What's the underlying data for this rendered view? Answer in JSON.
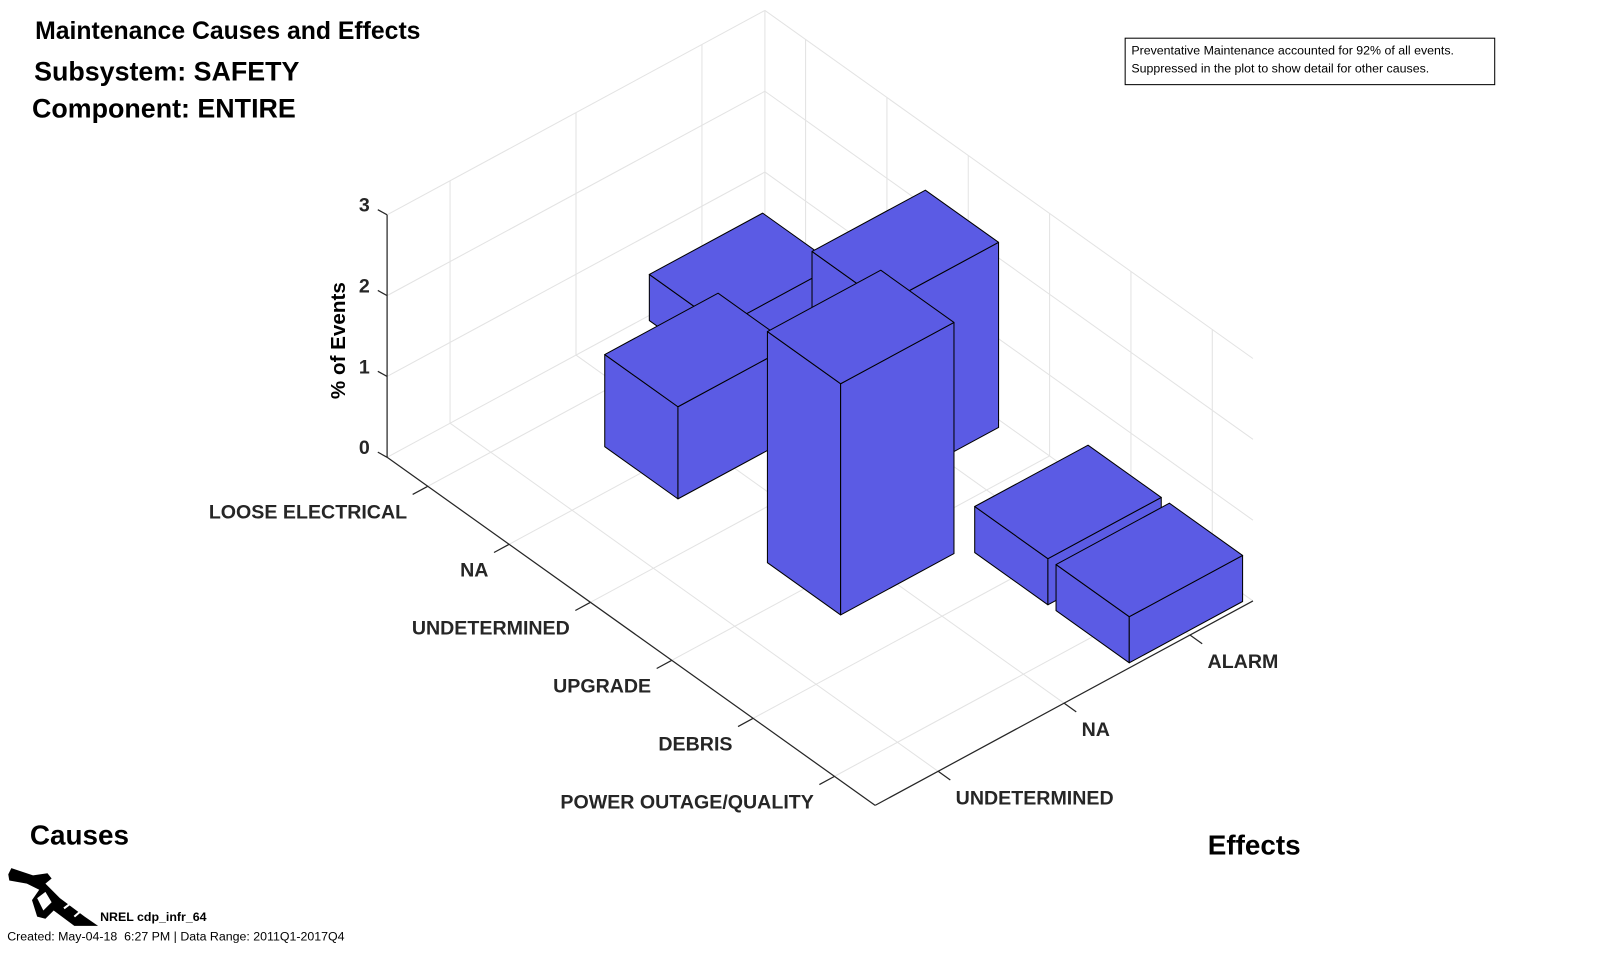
{
  "title": {
    "line1": "Maintenance Causes and Effects",
    "line2": "Subsystem: SAFETY",
    "line3": "Component: ENTIRE"
  },
  "annotation": {
    "line1": "Preventative Maintenance accounted for 92% of all events.",
    "line2": "Suppressed in the plot to show detail for other causes."
  },
  "footer": {
    "logo_label": "NREL cdp_infr_64",
    "created": "Created: May-04-18  6:27 PM | Data Range: 2011Q1-2017Q4",
    "logo_icon": "fuel-nozzle-icon"
  },
  "chart_data": {
    "type": "bar3d",
    "title": "Maintenance Causes and Effects",
    "xlabel": "Causes",
    "ylabel": "Effects",
    "zlabel": "% of Events",
    "causes": [
      "LOOSE ELECTRICAL",
      "NA",
      "UNDETERMINED",
      "UPGRADE",
      "DEBRIS",
      "POWER OUTAGE/QUALITY"
    ],
    "effects": [
      "UNDETERMINED",
      "NA",
      "ALARM"
    ],
    "zlim": [
      0,
      3
    ],
    "zticks": [
      "0",
      "1",
      "2",
      "3"
    ],
    "grid": true,
    "bar_color": "#5b5be4",
    "values": [
      [
        0,
        0,
        0.57
      ],
      [
        0,
        1.14,
        0
      ],
      [
        0,
        0,
        2.29
      ],
      [
        0,
        2.86,
        0
      ],
      [
        0,
        0,
        0.57
      ],
      [
        0,
        0,
        0.57
      ]
    ]
  }
}
